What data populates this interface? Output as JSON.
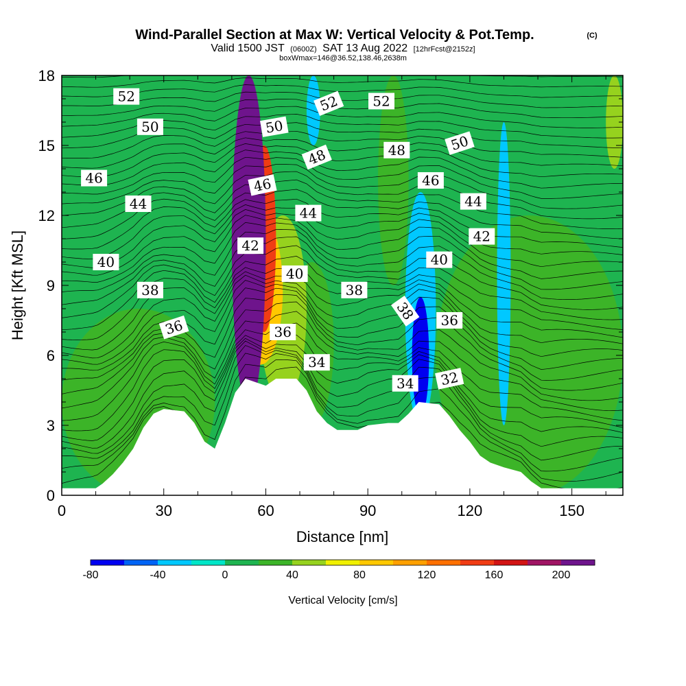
{
  "chart_data": {
    "type": "heatmap",
    "title": "Wind-Parallel Section at Max W: Vertical Velocity & Pot.Temp.",
    "title_mark": "(C)",
    "subtitle": {
      "valid": "Valid 1500 JST",
      "zulu": "(0600Z)",
      "date": "SAT 13 Aug 2022",
      "forecast": "[12hrFcst@2152z]"
    },
    "subtitle2": "boxWmax=146@36.52,138.46,2638m",
    "xlabel": "Distance [nm]",
    "ylabel": "Height [Kft MSL]",
    "xlim": [
      0,
      165
    ],
    "ylim": [
      0,
      18
    ],
    "xticks": [
      0,
      30,
      60,
      90,
      120,
      150
    ],
    "yticks": [
      0,
      3,
      6,
      9,
      12,
      15,
      18
    ],
    "colorbar": {
      "label": "Vertical Velocity [cm/s]",
      "min": -80,
      "max": 220,
      "step": 20,
      "tick_labels": [
        "-80",
        "-40",
        "0",
        "40",
        "80",
        "120",
        "160",
        "200"
      ],
      "colors": [
        "#0000f0",
        "#0064f5",
        "#00c8ff",
        "#00e6c8",
        "#1eb450",
        "#3cb428",
        "#96d21e",
        "#f0f000",
        "#ffc800",
        "#ffa000",
        "#ff7000",
        "#f03c14",
        "#d21414",
        "#a01464",
        "#6e148c"
      ]
    },
    "background_w": 10,
    "vertical_velocity_features": [
      {
        "x": [
          50,
          60
        ],
        "y": [
          3.8,
          18
        ],
        "w": 210
      },
      {
        "x": [
          54,
          56
        ],
        "y": [
          14.5,
          18
        ],
        "w": 225
      },
      {
        "x": [
          56,
          63
        ],
        "y": [
          7,
          15
        ],
        "w": 150
      },
      {
        "x": [
          52,
          65
        ],
        "y": [
          5.6,
          12
        ],
        "w": 90
      },
      {
        "x": [
          58,
          72
        ],
        "y": [
          4,
          12
        ],
        "w": 50
      },
      {
        "x": [
          67,
          80
        ],
        "y": [
          3,
          10
        ],
        "w": 30
      },
      {
        "x": [
          103,
          108
        ],
        "y": [
          3.4,
          8.5
        ],
        "w": -70
      },
      {
        "x": [
          101,
          110
        ],
        "y": [
          3,
          13
        ],
        "w": -30
      },
      {
        "x": [
          128,
          132
        ],
        "y": [
          3,
          16
        ],
        "w": -25
      },
      {
        "x": [
          72,
          76
        ],
        "y": [
          15,
          18
        ],
        "w": -25
      },
      {
        "x": [
          0,
          45
        ],
        "y": [
          0,
          8
        ],
        "w": 20
      },
      {
        "x": [
          110,
          165
        ],
        "y": [
          0,
          12
        ],
        "w": 20
      },
      {
        "x": [
          93,
          102
        ],
        "y": [
          9,
          18
        ],
        "w": 25
      },
      {
        "x": [
          160,
          165
        ],
        "y": [
          14,
          18
        ],
        "w": 40
      }
    ],
    "terrain": [
      [
        0,
        0.3
      ],
      [
        5,
        0.3
      ],
      [
        10,
        0.3
      ],
      [
        12,
        0.5
      ],
      [
        15,
        0.9
      ],
      [
        18,
        1.4
      ],
      [
        21,
        2
      ],
      [
        24,
        2.9
      ],
      [
        27,
        3.5
      ],
      [
        30,
        3.7
      ],
      [
        36,
        3.6
      ],
      [
        39,
        3.1
      ],
      [
        42,
        2.3
      ],
      [
        45,
        2
      ],
      [
        48,
        3.1
      ],
      [
        51,
        4.4
      ],
      [
        54,
        5
      ],
      [
        60,
        4.7
      ],
      [
        63,
        5
      ],
      [
        69,
        5
      ],
      [
        72,
        4.5
      ],
      [
        75,
        3.6
      ],
      [
        78,
        3.1
      ],
      [
        81,
        2.8
      ],
      [
        87,
        2.8
      ],
      [
        90,
        3
      ],
      [
        96,
        3.1
      ],
      [
        99,
        3.1
      ],
      [
        102,
        3.5
      ],
      [
        105,
        4
      ],
      [
        111,
        3.9
      ],
      [
        114,
        3.4
      ],
      [
        117,
        2.8
      ],
      [
        120,
        2.3
      ],
      [
        123,
        1.7
      ],
      [
        126,
        1.4
      ],
      [
        130,
        1.2
      ],
      [
        135,
        1
      ],
      [
        138,
        0.6
      ],
      [
        141,
        0.3
      ],
      [
        150,
        0.3
      ],
      [
        165,
        0.3
      ]
    ],
    "theta_contours": [
      32,
      34,
      36,
      38,
      40,
      42,
      44,
      46,
      48,
      50,
      52
    ],
    "contour_labels": [
      {
        "text": "52",
        "x": 19,
        "y": 17.1,
        "rot": 0
      },
      {
        "text": "50",
        "x": 26,
        "y": 15.8,
        "rot": 0
      },
      {
        "text": "46",
        "x": 9.5,
        "y": 13.6,
        "rot": 0
      },
      {
        "text": "44",
        "x": 22.5,
        "y": 12.5,
        "rot": 0
      },
      {
        "text": "40",
        "x": 13,
        "y": 10,
        "rot": 0
      },
      {
        "text": "38",
        "x": 26,
        "y": 8.8,
        "rot": 0
      },
      {
        "text": "36",
        "x": 33,
        "y": 7.2,
        "rot": -18
      },
      {
        "text": "50",
        "x": 62.5,
        "y": 15.8,
        "rot": -10
      },
      {
        "text": "46",
        "x": 59,
        "y": 13.3,
        "rot": -12
      },
      {
        "text": "42",
        "x": 55.5,
        "y": 10.7,
        "rot": 0
      },
      {
        "text": "40",
        "x": 68.5,
        "y": 9.5,
        "rot": 0
      },
      {
        "text": "36",
        "x": 65,
        "y": 7,
        "rot": 0
      },
      {
        "text": "34",
        "x": 75,
        "y": 5.7,
        "rot": 0
      },
      {
        "text": "44",
        "x": 72.5,
        "y": 12.1,
        "rot": 0
      },
      {
        "text": "48",
        "x": 75,
        "y": 14.5,
        "rot": -22
      },
      {
        "text": "52",
        "x": 78.5,
        "y": 16.8,
        "rot": -22
      },
      {
        "text": "52",
        "x": 94,
        "y": 16.9,
        "rot": 0
      },
      {
        "text": "48",
        "x": 98.5,
        "y": 14.8,
        "rot": 0
      },
      {
        "text": "38",
        "x": 86,
        "y": 8.8,
        "rot": 0
      },
      {
        "text": "38",
        "x": 101,
        "y": 7.9,
        "rot": 55
      },
      {
        "text": "34",
        "x": 101,
        "y": 4.8,
        "rot": 0
      },
      {
        "text": "46",
        "x": 108.5,
        "y": 13.5,
        "rot": 0
      },
      {
        "text": "50",
        "x": 117,
        "y": 15.1,
        "rot": -18
      },
      {
        "text": "44",
        "x": 121,
        "y": 12.6,
        "rot": 0
      },
      {
        "text": "42",
        "x": 123.5,
        "y": 11.1,
        "rot": 0
      },
      {
        "text": "40",
        "x": 111,
        "y": 10.1,
        "rot": 0
      },
      {
        "text": "36",
        "x": 114,
        "y": 7.5,
        "rot": 0
      },
      {
        "text": "32",
        "x": 114,
        "y": 5,
        "rot": -12
      }
    ]
  }
}
